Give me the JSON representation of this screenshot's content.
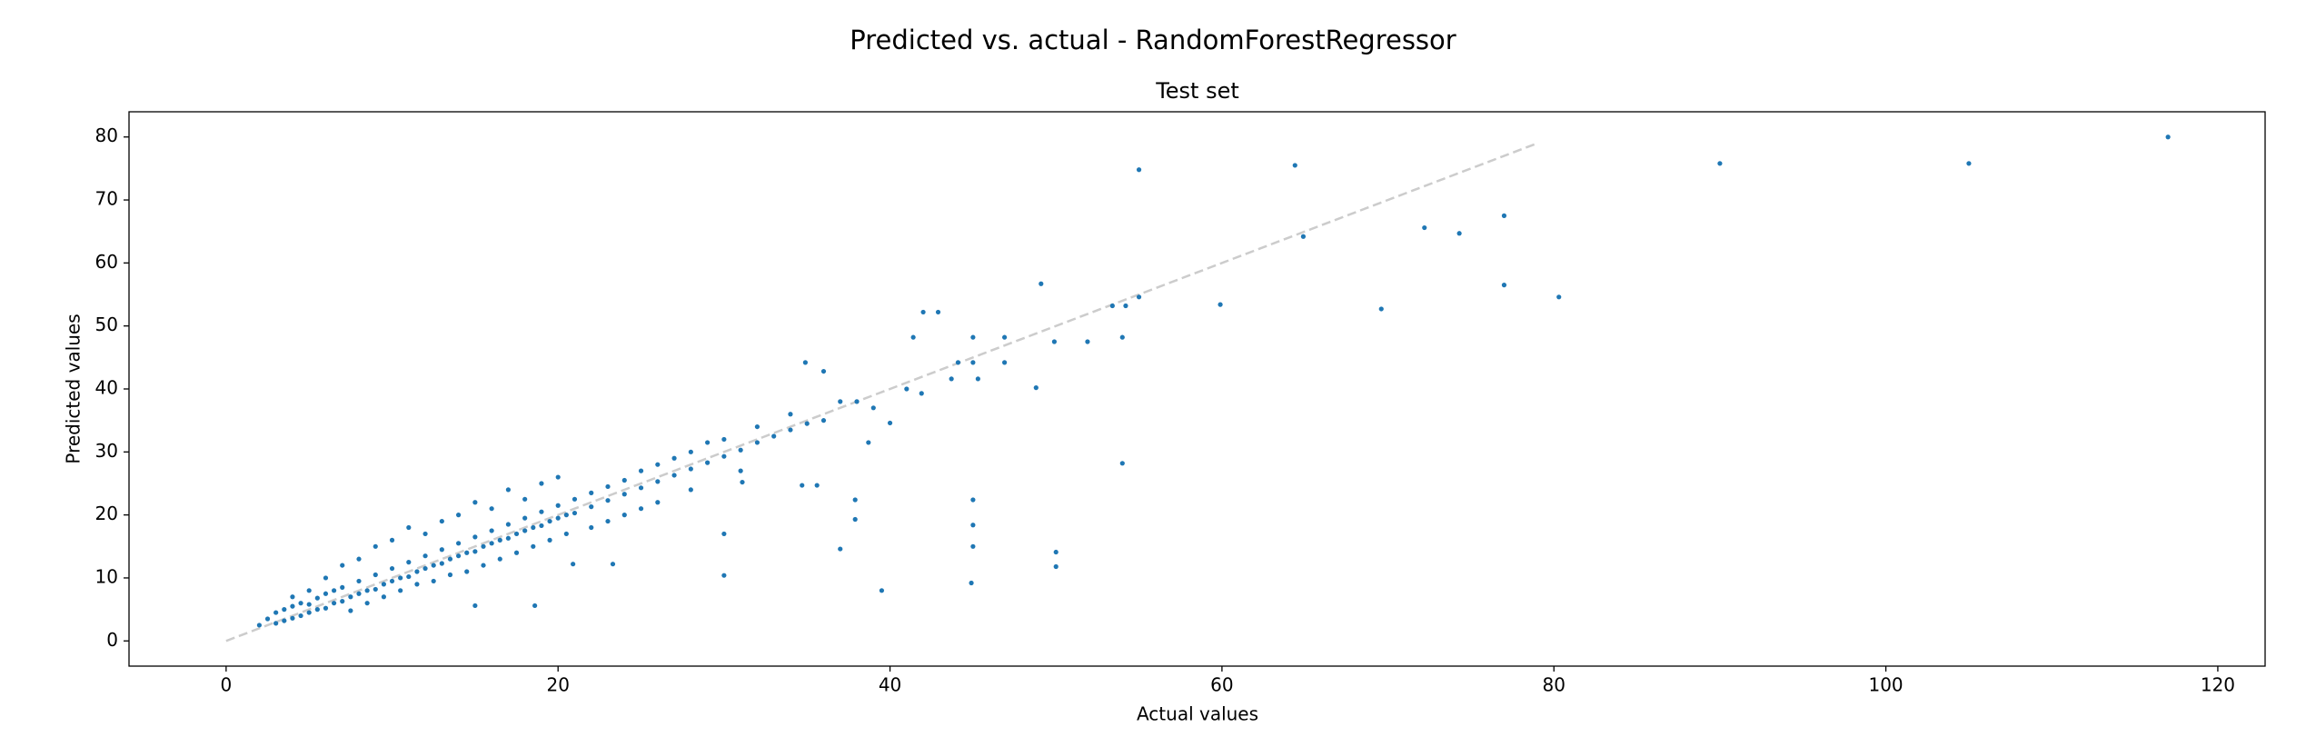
{
  "chart_data": {
    "type": "scatter",
    "title": "Predicted vs. actual - RandomForestRegressor",
    "subtitle": "Test set",
    "x_label": "Actual values",
    "y_label": "Predicted values",
    "xlim": [
      -5.85,
      122.85
    ],
    "ylim": [
      -4,
      84
    ],
    "xticks": [
      0,
      20,
      40,
      60,
      80,
      100,
      120
    ],
    "yticks": [
      0,
      10,
      20,
      30,
      40,
      50,
      60,
      70,
      80
    ],
    "grid": false,
    "reference_line": {
      "x": [
        0,
        79
      ],
      "y": [
        0,
        79
      ],
      "color": "#cccccc",
      "style": "dashed"
    },
    "series": [
      {
        "color": "#1f77b4",
        "x": [
          2,
          2.5,
          3,
          3,
          3.5,
          3.5,
          4,
          4,
          4,
          4.5,
          4.5,
          5,
          5,
          5,
          5.5,
          5.5,
          6,
          6,
          6,
          6.5,
          6.5,
          7,
          7,
          7,
          7.5,
          7.5,
          8,
          8,
          8,
          8.5,
          8.5,
          9,
          9,
          9,
          9.5,
          9.5,
          10,
          10,
          10,
          10.5,
          10.5,
          11,
          11,
          11,
          11.5,
          11.5,
          12,
          12,
          12,
          12.5,
          12.5,
          13,
          13,
          13,
          13.5,
          13.5,
          14,
          14,
          14,
          14.5,
          14.5,
          15,
          15,
          15,
          15.5,
          15.5,
          16,
          16,
          16,
          16.5,
          16.5,
          17,
          17,
          17,
          17.5,
          17.5,
          18,
          18,
          18,
          18.5,
          18.5,
          19,
          19,
          19,
          19.5,
          19.5,
          20,
          20,
          20,
          20.5,
          20.5,
          21,
          21,
          22,
          22,
          22,
          23,
          23,
          23,
          24,
          24,
          24,
          25,
          25,
          25,
          26,
          26,
          26,
          27,
          27,
          28,
          28,
          28,
          29,
          29,
          30,
          30,
          31,
          31,
          32,
          32,
          33,
          34,
          34,
          35,
          36,
          37,
          38,
          39,
          117,
          105,
          90,
          64.4,
          55,
          77,
          72.2,
          74.3,
          64.9,
          77,
          80.3,
          69.6,
          59.9,
          49.1,
          55,
          54.2,
          53.4,
          51.9,
          49.9,
          54,
          48.8,
          54,
          50,
          50,
          44.9,
          39.5,
          45,
          45,
          45,
          37.9,
          37.9,
          37,
          42,
          42.9,
          41.4,
          45,
          46.9,
          44.1,
          45,
          46.9,
          34.9,
          36,
          41.9,
          41,
          43.7,
          45.3,
          30,
          30,
          34.7,
          35.6,
          20.9,
          23.3,
          18.6,
          15,
          31.1,
          40,
          38.7
        ],
        "y": [
          2.5,
          3.5,
          2.8,
          4.5,
          3.2,
          5,
          3.6,
          5.5,
          7,
          4,
          6,
          4.5,
          5.8,
          8,
          5,
          6.8,
          5.2,
          7.5,
          10,
          6,
          8,
          6.3,
          8.5,
          12,
          7,
          4.8,
          7.5,
          9.5,
          13,
          8,
          6,
          8.2,
          10.5,
          15,
          9,
          7,
          9.5,
          11.5,
          16,
          10,
          8,
          10.2,
          12.5,
          18,
          11,
          9,
          11.5,
          13.5,
          17,
          12,
          9.5,
          12.3,
          14.5,
          19,
          13,
          10.5,
          13.5,
          15.5,
          20,
          14,
          11,
          14.2,
          16.5,
          22,
          15,
          12,
          15.5,
          17.5,
          21,
          16,
          13,
          16.3,
          18.5,
          24,
          17,
          14,
          17.5,
          19.5,
          22.5,
          18,
          15,
          18.3,
          20.5,
          25,
          19,
          16,
          19.5,
          21.5,
          26,
          20,
          17,
          20.3,
          22.5,
          21.3,
          23.5,
          18,
          22.3,
          24.5,
          19,
          23.3,
          25.5,
          20,
          24.3,
          27,
          21,
          25.3,
          28,
          22,
          26.3,
          29,
          27.3,
          30,
          24,
          28.3,
          31.5,
          29.3,
          32,
          30.3,
          27,
          31.5,
          34,
          32.5,
          33.5,
          36,
          34.5,
          35,
          38,
          38,
          37,
          80,
          75.8,
          75.8,
          75.5,
          74.8,
          67.5,
          65.6,
          64.7,
          64.2,
          56.5,
          54.6,
          52.7,
          53.4,
          56.7,
          54.6,
          53.2,
          53.2,
          47.5,
          47.5,
          48.2,
          40.2,
          28.2,
          14.1,
          11.8,
          9.2,
          8,
          22.4,
          18.4,
          15,
          22.4,
          19.3,
          14.6,
          52.2,
          52.2,
          48.2,
          48.2,
          48.2,
          44.2,
          44.2,
          44.2,
          44.2,
          42.8,
          39.3,
          40,
          41.6,
          41.6,
          10.4,
          17,
          24.7,
          24.7,
          12.2,
          12.2,
          5.6,
          5.6,
          25.2,
          34.6,
          31.5
        ]
      }
    ]
  }
}
